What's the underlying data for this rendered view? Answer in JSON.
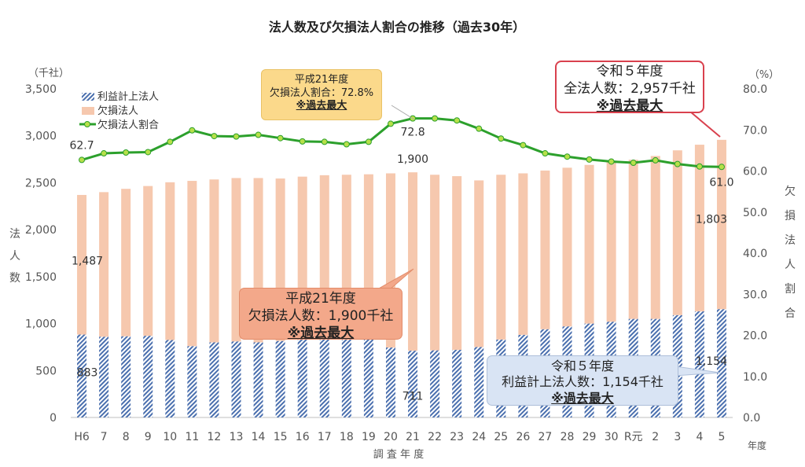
{
  "chart_data": {
    "type": "bar",
    "title": "法人数及び欠損法人割合の推移（過去30年）",
    "xlabel": "調 査 年 度",
    "xlabel_right": "年度",
    "ylabel_left": "法人数",
    "ylabel_left_unit": "（千社）",
    "ylabel_right": "欠損法人割合",
    "ylabel_right_unit": "（%）",
    "ylim_left": [
      0,
      3500
    ],
    "ylim_right": [
      0,
      80
    ],
    "yticks_left": [
      "0",
      "500",
      "1,000",
      "1,500",
      "2,000",
      "2,500",
      "3,000",
      "3,500"
    ],
    "yticks_right": [
      "0.0",
      "10.0",
      "20.0",
      "30.0",
      "40.0",
      "50.0",
      "60.0",
      "70.0",
      "80.0"
    ],
    "categories": [
      "H6",
      "7",
      "8",
      "9",
      "10",
      "11",
      "12",
      "13",
      "14",
      "15",
      "16",
      "17",
      "18",
      "19",
      "20",
      "21",
      "22",
      "23",
      "24",
      "25",
      "26",
      "27",
      "28",
      "29",
      "30",
      "R元",
      "2",
      "3",
      "4",
      "5"
    ],
    "legend_position": "top-left",
    "series": [
      {
        "name": "利益計上法人",
        "kind": "bar-stacked",
        "color": "#4a6fae",
        "values": [
          883,
          860,
          865,
          870,
          825,
          760,
          800,
          810,
          800,
          815,
          840,
          860,
          870,
          860,
          745,
          711,
          715,
          720,
          750,
          830,
          880,
          940,
          970,
          1000,
          1020,
          1050,
          1050,
          1090,
          1130,
          1154
        ]
      },
      {
        "name": "欠損法人",
        "kind": "bar-stacked",
        "color": "#f6c8ae",
        "values": [
          1487,
          1540,
          1570,
          1595,
          1680,
          1760,
          1735,
          1740,
          1750,
          1730,
          1725,
          1720,
          1715,
          1730,
          1855,
          1900,
          1870,
          1850,
          1775,
          1755,
          1720,
          1690,
          1690,
          1690,
          1705,
          1695,
          1735,
          1755,
          1775,
          1803
        ]
      },
      {
        "name": "欠損法人割合",
        "kind": "line",
        "axis": "right",
        "color": "#2ca02c",
        "values": [
          62.7,
          64.3,
          64.5,
          64.6,
          67.1,
          69.9,
          68.5,
          68.4,
          68.8,
          68.0,
          67.2,
          67.1,
          66.5,
          67.1,
          71.5,
          72.8,
          72.8,
          72.3,
          70.3,
          67.9,
          66.3,
          64.3,
          63.5,
          62.8,
          62.3,
          62.0,
          62.6,
          61.7,
          61.1,
          61.0
        ]
      }
    ],
    "data_labels": [
      {
        "text": "62.7",
        "series": 2,
        "index": 0
      },
      {
        "text": "72.8",
        "series": 2,
        "index": 15
      },
      {
        "text": "61.0",
        "series": 2,
        "index": 29
      },
      {
        "text": "1,487",
        "series": 1,
        "index": 0
      },
      {
        "text": "1,900",
        "series": 1,
        "index": 15
      },
      {
        "text": "1,803",
        "series": 1,
        "index": 29
      },
      {
        "text": "883",
        "series": 0,
        "index": 0
      },
      {
        "text": "711",
        "series": 0,
        "index": 15
      },
      {
        "text": "1,154",
        "series": 0,
        "index": 29
      }
    ],
    "annotations": {
      "h21_rate": {
        "l1": "平成21年度",
        "l2": "欠損法人割合：72.8%",
        "l3": "※過去最大"
      },
      "h21_deficit": {
        "l1": "平成21年度",
        "l2": "欠損法人数：1,900千社",
        "l3": "※過去最大"
      },
      "r5_total": {
        "l1": "令和５年度",
        "l2": "全法人数：2,957千社",
        "l3": "※過去最大"
      },
      "r5_profit": {
        "l1": "令和５年度",
        "l2": "利益計上法人数：1,154千社",
        "l3": "※過去最大"
      }
    }
  }
}
